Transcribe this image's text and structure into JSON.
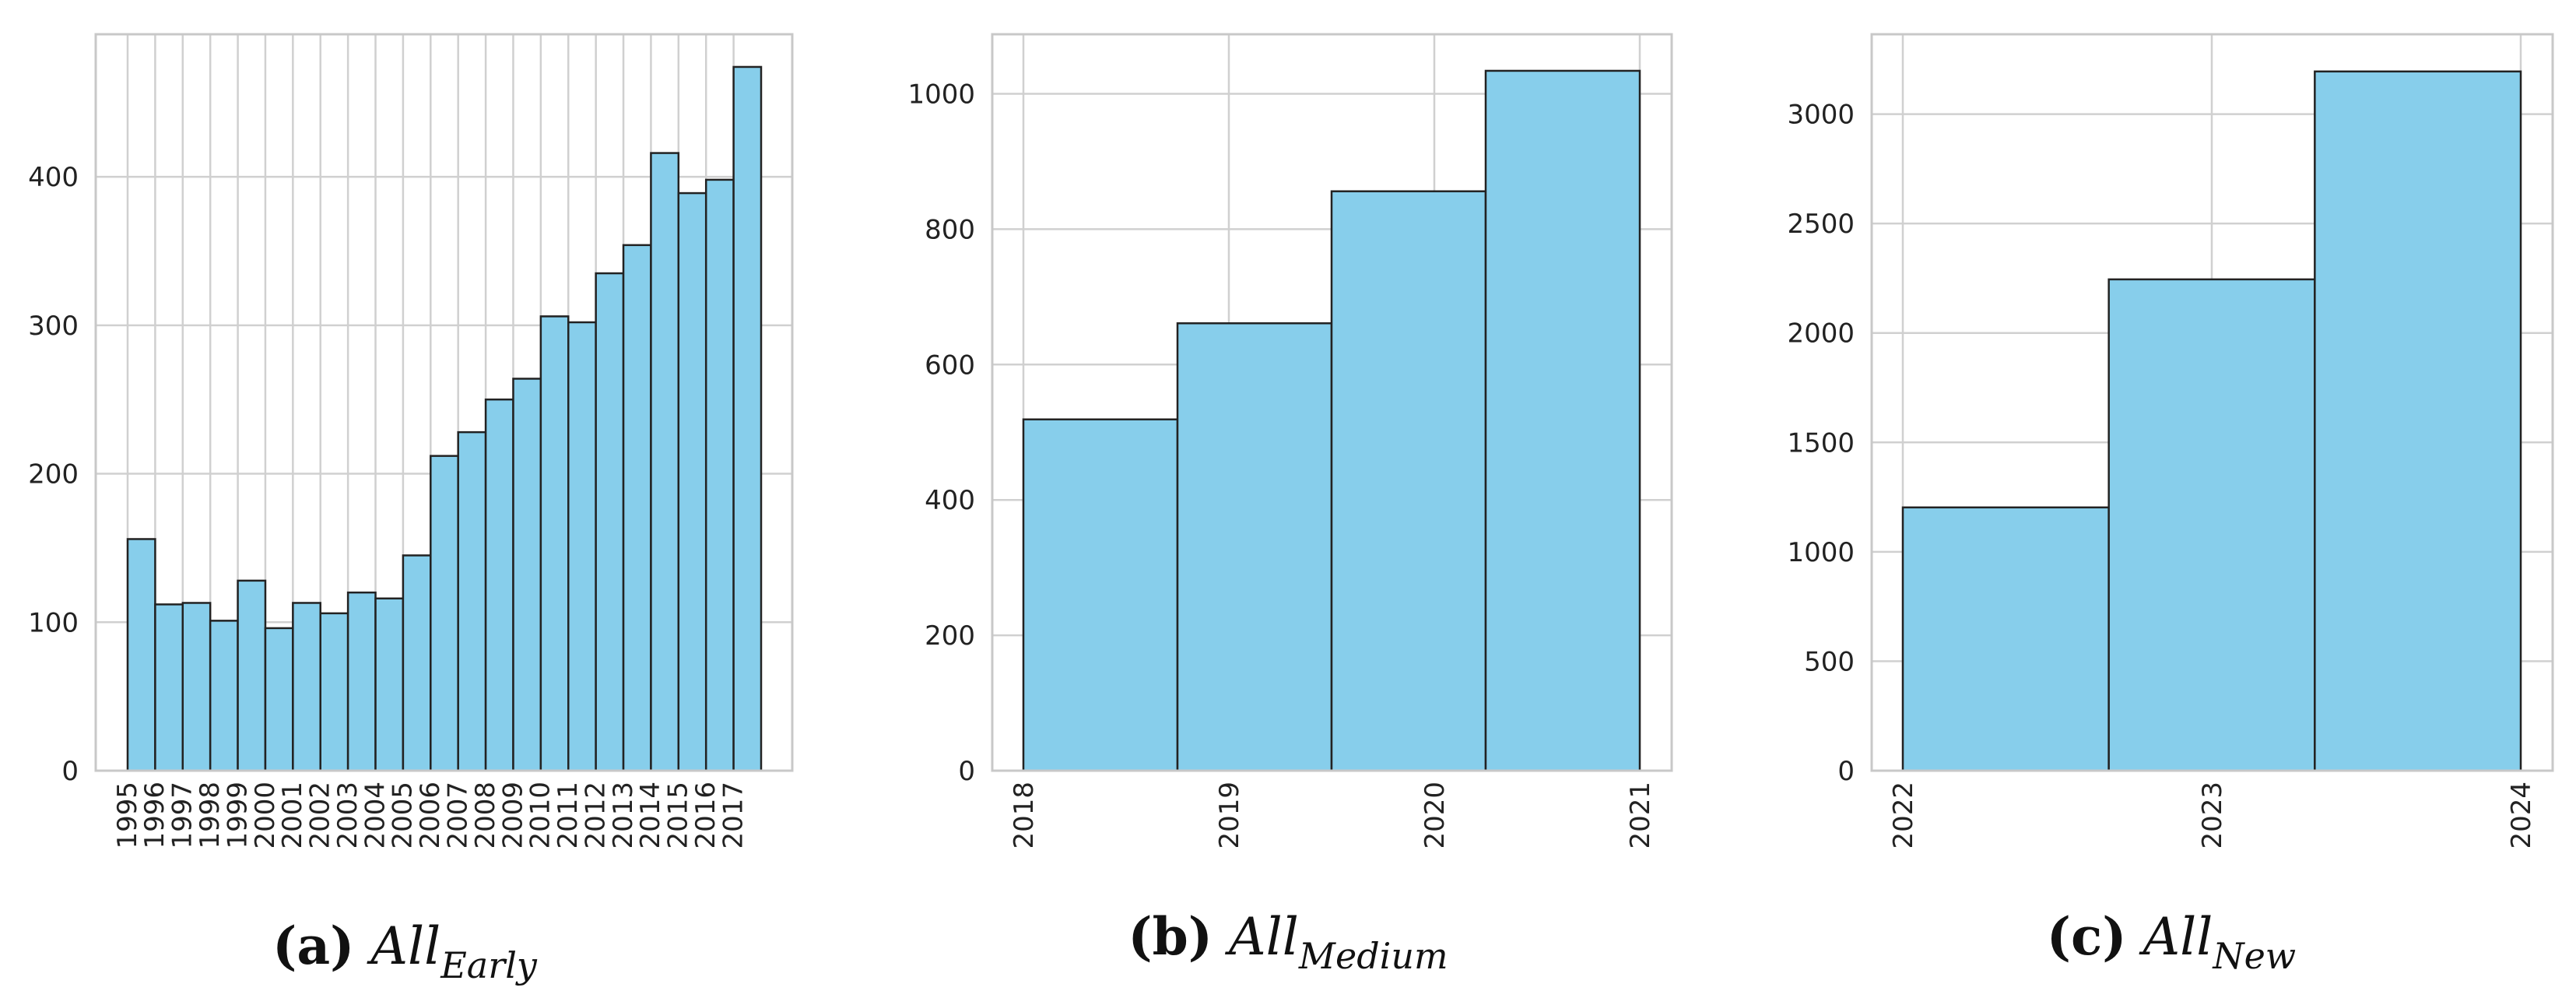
{
  "colors": {
    "bar_fill": "#87CEEB",
    "bar_edge": "#222222",
    "grid": "#d0d0d0",
    "frame": "#c8c8c8"
  },
  "chart_data": [
    {
      "type": "bar",
      "caption": {
        "label": "(a)",
        "base": "All",
        "subscript": "Early"
      },
      "x_tick_labels": [
        "1995",
        "1996",
        "1997",
        "1998",
        "1999",
        "2000",
        "2001",
        "2002",
        "2003",
        "2004",
        "2005",
        "2006",
        "2007",
        "2008",
        "2009",
        "2010",
        "2011",
        "2012",
        "2013",
        "2014",
        "2015",
        "2016",
        "2017"
      ],
      "values": [
        156,
        112,
        113,
        101,
        128,
        96,
        113,
        106,
        120,
        116,
        145,
        212,
        228,
        250,
        264,
        306,
        302,
        335,
        354,
        416,
        389,
        398,
        474
      ],
      "y_ticks": [
        0,
        100,
        200,
        300,
        400
      ],
      "ylim": [
        0,
        496
      ],
      "grid": true
    },
    {
      "type": "bar",
      "caption": {
        "label": "(b)",
        "base": "All",
        "subscript": "Medium"
      },
      "x_tick_labels": [
        "2018",
        "2019",
        "2020",
        "2021"
      ],
      "values": [
        519,
        661,
        856,
        1034
      ],
      "y_ticks": [
        0,
        200,
        400,
        600,
        800,
        1000
      ],
      "ylim": [
        0,
        1088
      ],
      "grid": true
    },
    {
      "type": "bar",
      "caption": {
        "label": "(c)",
        "base": "All",
        "subscript": "New"
      },
      "x_tick_labels": [
        "2022",
        "2023",
        "2024"
      ],
      "values": [
        1203,
        2245,
        3195
      ],
      "y_ticks": [
        0,
        500,
        1000,
        1500,
        2000,
        2500,
        3000
      ],
      "ylim": [
        0,
        3365
      ],
      "grid": true
    }
  ]
}
